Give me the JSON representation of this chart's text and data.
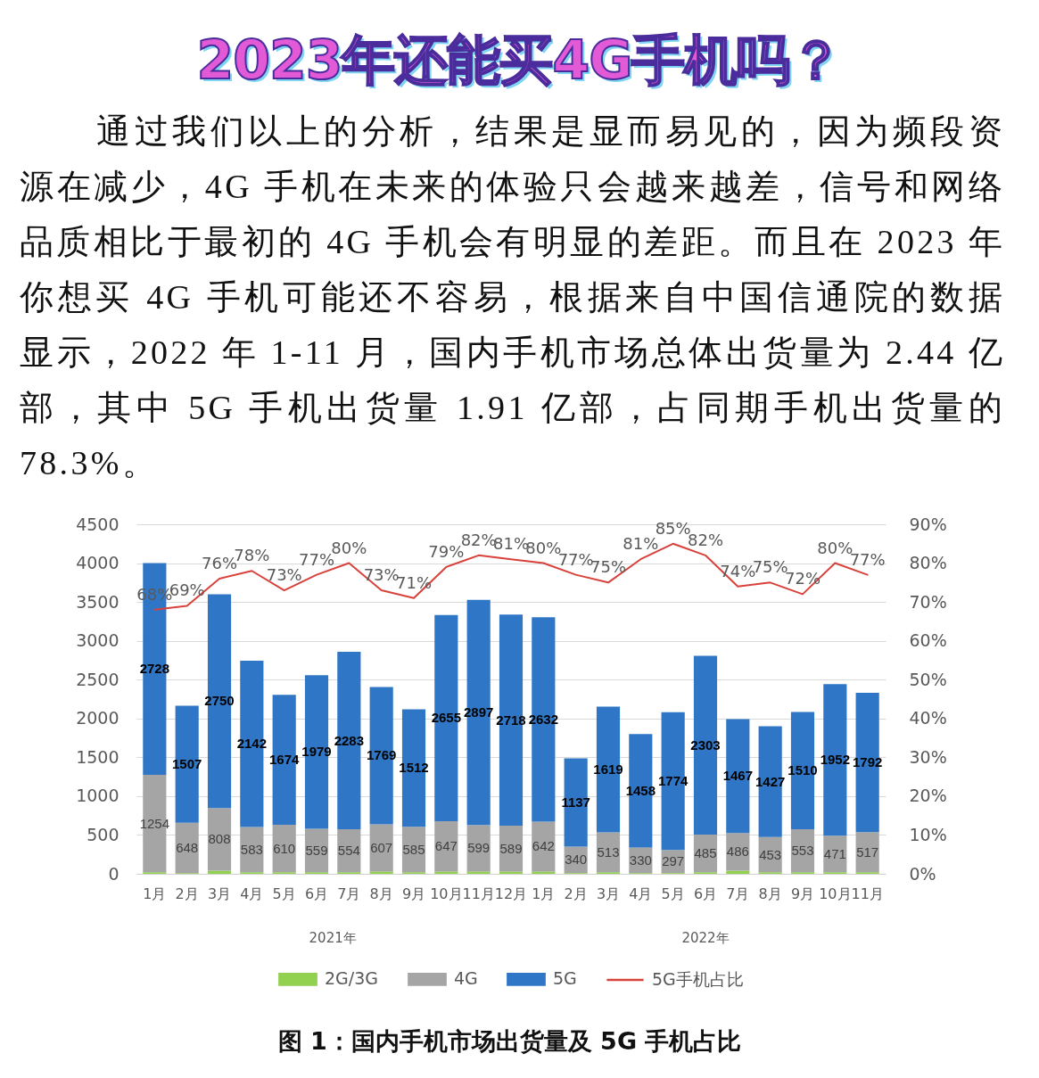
{
  "chart_data": {
    "type": "bar",
    "title": "2023年还能买4G手机吗？",
    "subtitle": "通过我们以上的分析，结果是显而易见的，因为频段资源在减少，4G 手机在未来的体验只会越来越差，信号和网络品质相比于最初的 4G 手机会有明显的差距。而且在 2023 年你想买 4G 手机可能还不容易，根据来自中国信通院的数据显示，2022 年 1-11 月，国内手机市场总体出货量为 2.44 亿部，其中 5G 手机出货量 1.91 亿部，占同期手机出货量的 78.3%。",
    "categories": [
      "1月",
      "2月",
      "3月",
      "4月",
      "5月",
      "6月",
      "7月",
      "8月",
      "9月",
      "10月",
      "11月",
      "12月",
      "1月",
      "2月",
      "3月",
      "4月",
      "5月",
      "6月",
      "7月",
      "8月",
      "9月",
      "10月",
      "11月"
    ],
    "stacked": true,
    "series": [
      {
        "name": "2G/3G",
        "color": "#92d050",
        "values": [
          20,
          10,
          40,
          20,
          20,
          20,
          20,
          30,
          20,
          30,
          30,
          30,
          30,
          10,
          20,
          10,
          10,
          20,
          40,
          20,
          20,
          20,
          20
        ]
      },
      {
        "name": "4G",
        "color": "#a5a5a5",
        "values": [
          1254,
          648,
          808,
          583,
          610,
          559,
          554,
          607,
          585,
          647,
          599,
          589,
          642,
          340,
          513,
          330,
          297,
          485,
          486,
          453,
          553,
          471,
          517
        ],
        "value_labels": [
          "1254",
          "648",
          "808",
          "583",
          "610",
          "559",
          "554",
          "607",
          "585",
          "647",
          "599",
          "589",
          "642",
          "340",
          "513",
          "330",
          "297",
          "485",
          "486",
          "453",
          "553",
          "471",
          "517"
        ]
      },
      {
        "name": "5G",
        "color": "#2f77c6",
        "values": [
          2728,
          1507,
          2750,
          2142,
          1674,
          1979,
          2283,
          1769,
          1512,
          2655,
          2897,
          2718,
          2632,
          1137,
          1619,
          1458,
          1774,
          2303,
          1467,
          1427,
          1510,
          1952,
          1792
        ],
        "value_labels": [
          "2728",
          "1507",
          "2750",
          "2142",
          "1674",
          "1979",
          "2283",
          "1769",
          "1512",
          "2655",
          "2897",
          "2718",
          "2632",
          "1137",
          "1619",
          "1458",
          "1774",
          "2303",
          "1467",
          "1427",
          "1510",
          "1952",
          "1792"
        ]
      },
      {
        "name": "5G手机占比",
        "type": "line",
        "axis": "y2",
        "color": "#d9413b",
        "values": [
          68,
          69,
          76,
          78,
          73,
          77,
          80,
          73,
          71,
          79,
          82,
          81,
          80,
          77,
          75,
          81,
          85,
          82,
          74,
          75,
          72,
          80,
          77
        ],
        "value_labels": [
          "68%",
          "69%",
          "76%",
          "78%",
          "73%",
          "77%",
          "80%",
          "73%",
          "71%",
          "79%",
          "82%",
          "81%",
          "80%",
          "77%",
          "75%",
          "81%",
          "85%",
          "82%",
          "74%",
          "75%",
          "72%",
          "80%",
          "77%"
        ]
      }
    ],
    "ylim": [
      0,
      4500
    ],
    "yticks": [
      0,
      500,
      1000,
      1500,
      2000,
      2500,
      3000,
      3500,
      4000,
      4500
    ],
    "y2lim": [
      0,
      90
    ],
    "y2ticks": [
      {
        "value": 0,
        "label": "0%"
      },
      {
        "value": 10,
        "label": "10%"
      },
      {
        "value": 20,
        "label": "20%"
      },
      {
        "value": 30,
        "label": "30%"
      },
      {
        "value": 40,
        "label": "40%"
      },
      {
        "value": 50,
        "label": "50%"
      },
      {
        "value": 60,
        "label": "60%"
      },
      {
        "value": 70,
        "label": "70%"
      },
      {
        "value": 80,
        "label": "80%"
      },
      {
        "value": 90,
        "label": "90%"
      }
    ],
    "grid": "y",
    "legend": "bottom",
    "annotations": [
      "2021年",
      "2022年",
      "图 1：国内手机市场出货量及 5G 手机占比"
    ]
  }
}
